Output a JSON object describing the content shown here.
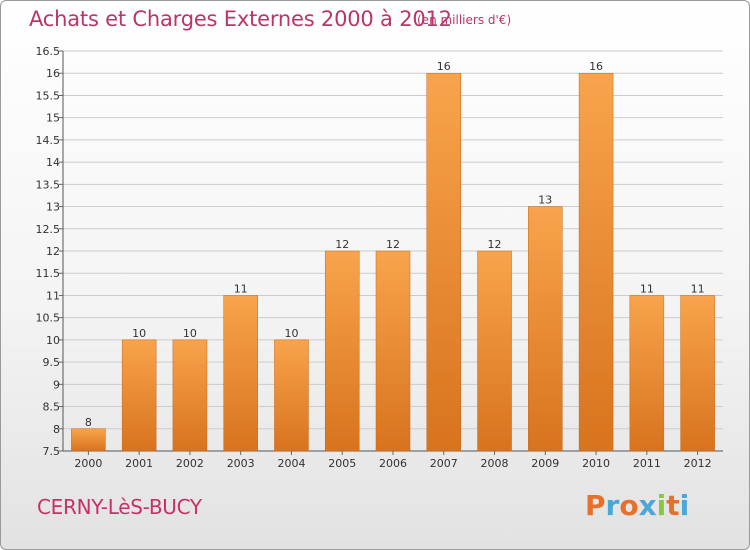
{
  "header": {
    "title": "Achats et Charges Externes 2000 à 2012",
    "subtitle": "(en milliers d'€)"
  },
  "footer": {
    "commune": "CERNY-LèS-BUCY",
    "brand": "Proxiti",
    "brand_colors": [
      "#e8702a",
      "#4aa8d8",
      "#e8702a",
      "#4aa8d8",
      "#8cc63f",
      "#e8702a",
      "#4aa8d8"
    ]
  },
  "colors": {
    "bar_light": "#f8a44c",
    "bar_dark": "#d8731e",
    "grid": "#cccccc",
    "axis_text": "#333333",
    "title": "#b8366a"
  },
  "chart_data": {
    "type": "bar",
    "categories": [
      "2000",
      "2001",
      "2002",
      "2003",
      "2004",
      "2005",
      "2006",
      "2007",
      "2008",
      "2009",
      "2010",
      "2011",
      "2012"
    ],
    "values": [
      8,
      10,
      10,
      11,
      10,
      12,
      12,
      16,
      12,
      13,
      16,
      11,
      11
    ],
    "data_labels": [
      "8",
      "10",
      "10",
      "11",
      "10",
      "12",
      "12",
      "16",
      "12",
      "13",
      "16",
      "11",
      "11"
    ],
    "ylim": [
      7.5,
      16.5
    ],
    "yticks": [
      7.5,
      8,
      8.5,
      9,
      9.5,
      10,
      10.5,
      11,
      11.5,
      12,
      12.5,
      13,
      13.5,
      14,
      14.5,
      15,
      15.5,
      16,
      16.5
    ],
    "ytick_labels": [
      "7.5",
      "8",
      "8.5",
      "9",
      "9.5",
      "10",
      "10.5",
      "11",
      "11.5",
      "12",
      "12.5",
      "13",
      "13.5",
      "14",
      "14.5",
      "15",
      "15.5",
      "16",
      "16.5"
    ],
    "grid": true,
    "legend": "none"
  }
}
